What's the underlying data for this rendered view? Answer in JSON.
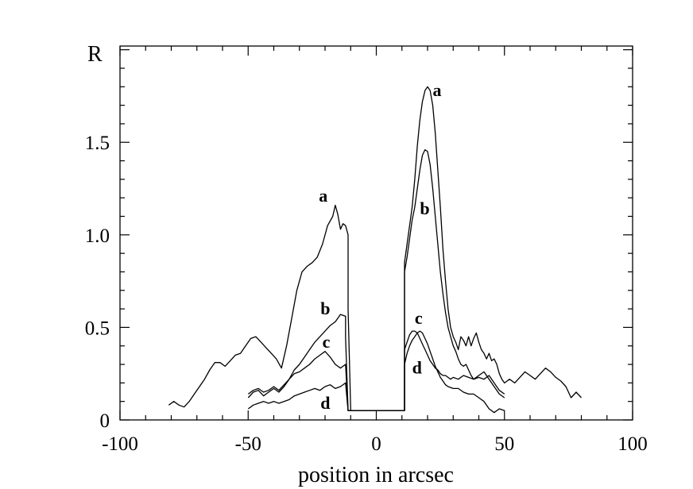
{
  "chart_data": {
    "type": "line",
    "xlabel": "position in arcsec",
    "ylabel": "R",
    "xlim": [
      -100,
      100
    ],
    "ylim": [
      0,
      2.02
    ],
    "x_ticks": [
      -100,
      -50,
      0,
      50,
      100
    ],
    "x_tick_labels": [
      "-100",
      "-50",
      "0",
      "50",
      "100"
    ],
    "y_ticks": [
      0,
      0.5,
      1.0,
      1.5
    ],
    "y_tick_labels": [
      "0",
      "0.5",
      "1.0",
      "1.5"
    ],
    "grid": false,
    "legend": "inline curve labels",
    "series": [
      {
        "name": "a",
        "label_pos": [
          -19,
          1.18
        ],
        "x": [
          -81,
          -79,
          -77,
          -75,
          -73,
          -71,
          -69,
          -67,
          -65,
          -63,
          -61,
          -59,
          -57,
          -55,
          -53,
          -51,
          -49,
          -47,
          -45,
          -43,
          -41,
          -39,
          -37,
          -35,
          -33,
          -31,
          -29,
          -27,
          -25,
          -23,
          -21,
          -19,
          -17,
          -16,
          -15,
          -14,
          -13,
          -12,
          -11,
          -11,
          -10,
          11,
          11,
          12,
          13,
          14,
          15,
          16,
          17,
          18,
          19,
          20,
          21,
          22,
          23,
          24,
          25,
          26,
          27,
          28,
          29,
          30,
          31,
          32,
          33,
          34,
          35,
          36,
          37,
          38,
          39,
          40,
          41,
          42,
          43,
          44,
          45,
          46,
          47,
          48,
          49,
          50,
          52,
          54,
          56,
          58,
          60,
          62,
          64,
          66,
          68,
          70,
          72,
          74,
          76,
          78,
          80
        ],
        "y": [
          0.08,
          0.1,
          0.08,
          0.07,
          0.1,
          0.14,
          0.18,
          0.22,
          0.27,
          0.31,
          0.31,
          0.29,
          0.32,
          0.35,
          0.36,
          0.4,
          0.44,
          0.45,
          0.42,
          0.39,
          0.36,
          0.33,
          0.28,
          0.4,
          0.55,
          0.7,
          0.8,
          0.83,
          0.85,
          0.88,
          0.95,
          1.05,
          1.1,
          1.16,
          1.11,
          1.03,
          1.06,
          1.05,
          1.0,
          0.6,
          0.05,
          0.05,
          0.85,
          0.95,
          1.05,
          1.15,
          1.3,
          1.48,
          1.62,
          1.72,
          1.78,
          1.8,
          1.78,
          1.7,
          1.55,
          1.35,
          1.15,
          0.92,
          0.75,
          0.6,
          0.5,
          0.45,
          0.42,
          0.38,
          0.45,
          0.43,
          0.4,
          0.45,
          0.4,
          0.44,
          0.47,
          0.42,
          0.38,
          0.36,
          0.33,
          0.36,
          0.32,
          0.33,
          0.3,
          0.25,
          0.22,
          0.2,
          0.22,
          0.2,
          0.23,
          0.26,
          0.24,
          0.22,
          0.25,
          0.28,
          0.26,
          0.23,
          0.21,
          0.18,
          0.12,
          0.15,
          0.12
        ]
      },
      {
        "name": "b",
        "label_pos": [
          -18,
          0.57
        ],
        "x": [
          -50,
          -48,
          -46,
          -44,
          -42,
          -40,
          -38,
          -36,
          -34,
          -32,
          -30,
          -28,
          -26,
          -24,
          -22,
          -20,
          -18,
          -16,
          -14,
          -12,
          -12,
          -11,
          11,
          11,
          12,
          13,
          14,
          15,
          16,
          17,
          18,
          19,
          20,
          21,
          22,
          23,
          24,
          25,
          26,
          27,
          28,
          29,
          30,
          31,
          32,
          33,
          34,
          35,
          36,
          37,
          38,
          40,
          42,
          44,
          46,
          48,
          50
        ],
        "y": [
          0.12,
          0.15,
          0.16,
          0.13,
          0.15,
          0.17,
          0.15,
          0.18,
          0.22,
          0.27,
          0.3,
          0.34,
          0.38,
          0.42,
          0.45,
          0.48,
          0.51,
          0.53,
          0.57,
          0.56,
          0.45,
          0.05,
          0.05,
          0.8,
          0.88,
          0.98,
          1.08,
          1.15,
          1.25,
          1.35,
          1.43,
          1.46,
          1.45,
          1.38,
          1.25,
          1.1,
          0.95,
          0.8,
          0.68,
          0.58,
          0.5,
          0.45,
          0.4,
          0.37,
          0.33,
          0.3,
          0.29,
          0.3,
          0.27,
          0.24,
          0.22,
          0.23,
          0.22,
          0.24,
          0.2,
          0.16,
          0.14
        ]
      },
      {
        "name": "c",
        "label_pos": [
          -18,
          0.39
        ],
        "x": [
          -50,
          -48,
          -46,
          -44,
          -42,
          -40,
          -38,
          -36,
          -34,
          -32,
          -30,
          -28,
          -26,
          -24,
          -22,
          -20,
          -18,
          -16,
          -14,
          -12,
          -11,
          11,
          11,
          12,
          13,
          14,
          15,
          16,
          17,
          18,
          19,
          20,
          21,
          22,
          23,
          24,
          25,
          26,
          27,
          28,
          29,
          30,
          32,
          34,
          36,
          38,
          40,
          42,
          44,
          46,
          48,
          50
        ],
        "y": [
          0.14,
          0.16,
          0.17,
          0.15,
          0.16,
          0.18,
          0.16,
          0.19,
          0.22,
          0.25,
          0.26,
          0.28,
          0.3,
          0.33,
          0.35,
          0.37,
          0.34,
          0.3,
          0.28,
          0.3,
          0.05,
          0.05,
          0.38,
          0.42,
          0.46,
          0.48,
          0.48,
          0.47,
          0.44,
          0.41,
          0.38,
          0.35,
          0.32,
          0.3,
          0.28,
          0.27,
          0.25,
          0.24,
          0.24,
          0.23,
          0.22,
          0.23,
          0.22,
          0.24,
          0.23,
          0.22,
          0.24,
          0.26,
          0.22,
          0.18,
          0.14,
          0.12
        ]
      },
      {
        "name": "d",
        "label_pos": [
          -18,
          0.06
        ],
        "x": [
          -50,
          -48,
          -46,
          -44,
          -42,
          -40,
          -38,
          -36,
          -34,
          -32,
          -30,
          -28,
          -26,
          -24,
          -22,
          -20,
          -18,
          -16,
          -14,
          -12,
          -11,
          11,
          11,
          12,
          13,
          14,
          15,
          16,
          17,
          18,
          19,
          20,
          21,
          22,
          23,
          24,
          25,
          26,
          27,
          28,
          30,
          32,
          34,
          36,
          38,
          40,
          42,
          44,
          46,
          48,
          50
        ],
        "y": [
          0.06,
          0.08,
          0.09,
          0.1,
          0.09,
          0.1,
          0.09,
          0.1,
          0.11,
          0.13,
          0.14,
          0.15,
          0.16,
          0.17,
          0.16,
          0.18,
          0.19,
          0.17,
          0.18,
          0.2,
          0.05,
          0.05,
          0.3,
          0.36,
          0.4,
          0.43,
          0.45,
          0.47,
          0.48,
          0.47,
          0.44,
          0.41,
          0.37,
          0.33,
          0.29,
          0.26,
          0.23,
          0.21,
          0.19,
          0.18,
          0.17,
          0.17,
          0.15,
          0.14,
          0.14,
          0.12,
          0.1,
          0.06,
          0.04,
          0.06,
          0.05
        ]
      }
    ]
  }
}
